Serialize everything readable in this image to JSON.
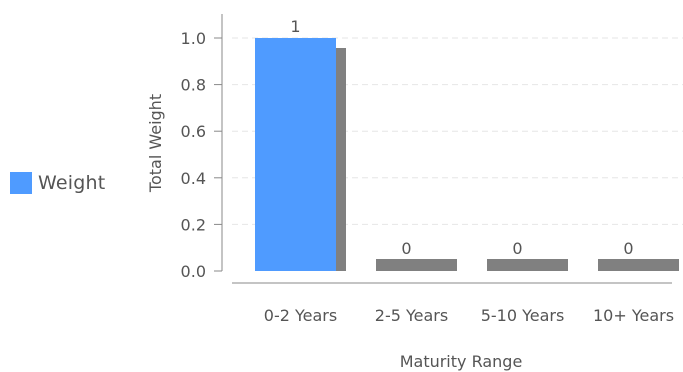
{
  "chart_data": {
    "type": "bar",
    "categories": [
      "0-2 Years",
      "2-5 Years",
      "5-10 Years",
      "10+ Years"
    ],
    "series": [
      {
        "name": "Weight",
        "values": [
          1,
          0,
          0,
          0
        ],
        "color": "#4f9bff"
      }
    ],
    "data_labels": [
      "1",
      "0",
      "0",
      "0"
    ],
    "xlabel": "Maturity Range",
    "ylabel": "Total Weight",
    "ylim": [
      0,
      1.0
    ],
    "yticks": [
      "0.0",
      "0.2",
      "0.4",
      "0.6",
      "0.8",
      "1.0"
    ],
    "grid": true,
    "legend_position": "left",
    "shadow_color": "#808080"
  }
}
